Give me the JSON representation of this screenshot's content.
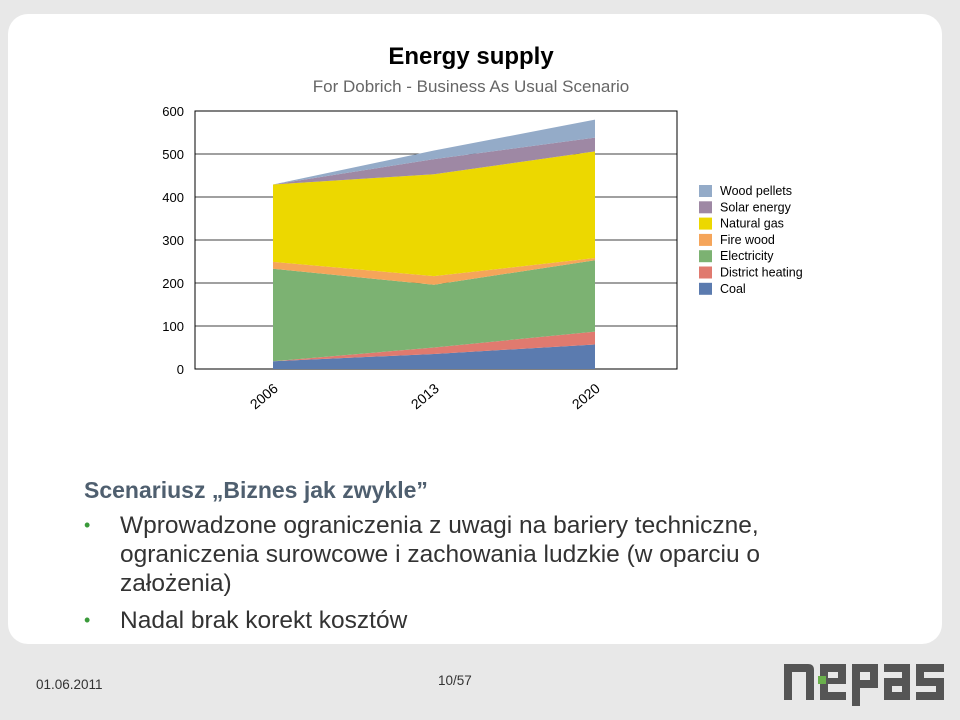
{
  "chart_data": {
    "type": "area",
    "stacked": true,
    "title": "Energy supply",
    "subtitle": "For Dobrich - Business As Usual Scenario",
    "x": [
      "2006",
      "2013",
      "2020"
    ],
    "ylim": [
      0,
      600
    ],
    "yticks": [
      0,
      100,
      200,
      300,
      400,
      500,
      600
    ],
    "legend_position": "right",
    "series": [
      {
        "name": "Coal",
        "color": "#5b7baf",
        "values": [
          18,
          35,
          57
        ]
      },
      {
        "name": "District heating",
        "color": "#e07a6f",
        "values": [
          0,
          15,
          30
        ]
      },
      {
        "name": "Electricity",
        "color": "#7cb272",
        "values": [
          215,
          146,
          166
        ]
      },
      {
        "name": "Fire wood",
        "color": "#f5a55a",
        "values": [
          16,
          20,
          5
        ]
      },
      {
        "name": "Natural gas",
        "color": "#ecd800",
        "values": [
          180,
          237,
          248
        ]
      },
      {
        "name": "Solar energy",
        "color": "#9e88a4",
        "values": [
          0,
          35,
          32
        ]
      },
      {
        "name": "Wood pellets",
        "color": "#94abc8",
        "values": [
          0,
          20,
          42
        ]
      }
    ],
    "legend_order": [
      "Wood pellets",
      "Solar energy",
      "Natural gas",
      "Fire wood",
      "Electricity",
      "District heating",
      "Coal"
    ]
  },
  "slide": {
    "heading": "Scenariusz „Biznes jak zwykle”",
    "bullets": [
      "Wprowadzone ograniczenia z uwagi na bariery techniczne, ograniczenia surowcowe i zachowania ludzkie (w oparciu o założenia)",
      "Nadal brak korekt kosztów"
    ],
    "bullet_color": "#3a9a3a",
    "heading_color": "#4f5f6f"
  },
  "footer": {
    "date": "01.06.2011",
    "page": "10/57",
    "logo_text": "nepas",
    "logo_colors": {
      "letters": "#555555",
      "dot": "#6ab04c"
    }
  }
}
